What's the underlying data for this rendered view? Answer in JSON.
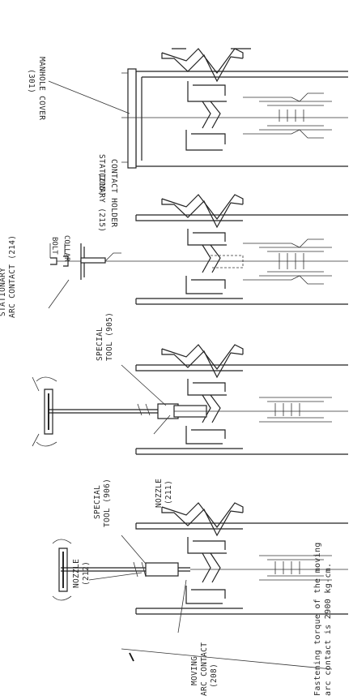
{
  "labels": {
    "manhole_cover": "MANHOLE COVER",
    "manhole_cover_ref": "(301)",
    "stationary_contact": "STATIONARY (215)",
    "contact_holder": "CONTACT HOLDER",
    "contact_holder_ref": "(215)",
    "bolt": "BOLT",
    "collar": "COLLAR",
    "stationary_arc": "STATIONARY",
    "arc_contact": "ARC CONTACT (214)",
    "special_tool_1": "SPECIAL",
    "special_tool_1b": "TOOL (905)",
    "special_tool_2": "SPECIAL",
    "special_tool_2b": "TOOL (906)",
    "nozzle_1": "NOZZLE",
    "nozzle_1_ref": "(211)",
    "nozzle_2": "NOZZLE",
    "nozzle_2_ref": "(212)",
    "moving_arc": "MOVING",
    "moving_arc_b": "ARC CONTACT",
    "moving_arc_ref": "(208)"
  },
  "note": {
    "line1": "Fastening torque of the moving",
    "line2": "arc contact is 2900 kg-cm."
  }
}
